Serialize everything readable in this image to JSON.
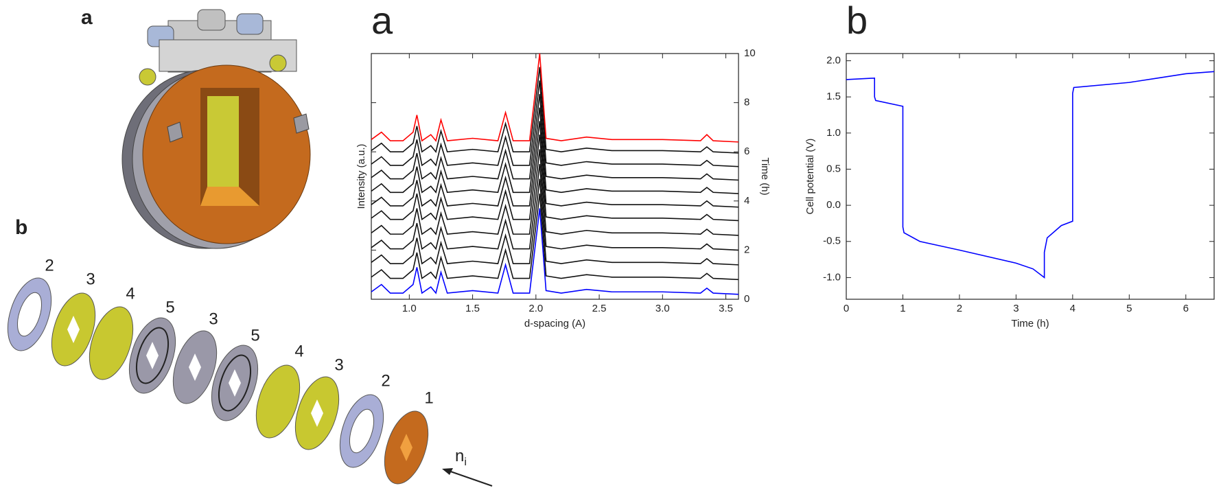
{
  "figure": {
    "cell_label": "a",
    "exploded_label": "b",
    "part_labels": [
      "2",
      "3",
      "4",
      "5",
      "3",
      "5",
      "4",
      "3",
      "2",
      "1"
    ],
    "arrow_label": {
      "base": "n",
      "subscript": "i"
    }
  },
  "chart_data": [
    {
      "type": "line",
      "panel_label": "a",
      "xlabel": "d-spacing (A)",
      "ylabel": "Intensity (a.u.)",
      "y2label": "Time (h)",
      "xlim": [
        0.7,
        3.6
      ],
      "xticks": [
        {
          "value": 1.0,
          "label": "1.0"
        },
        1.5,
        {
          "value": 2.0,
          "label": "2.0"
        },
        2.5,
        {
          "value": 3.0,
          "label": "3.0"
        },
        3.5
      ],
      "y2lim": [
        0,
        10
      ],
      "y2ticks": [
        0,
        2,
        4,
        6,
        8,
        10
      ],
      "x": [
        0.7,
        0.78,
        0.85,
        0.95,
        1.03,
        1.06,
        1.1,
        1.17,
        1.21,
        1.25,
        1.3,
        1.5,
        1.7,
        1.76,
        1.82,
        1.95,
        2.03,
        2.08,
        2.2,
        2.4,
        2.6,
        3.0,
        3.3,
        3.35,
        3.4,
        3.6
      ],
      "series": [
        {
          "axis": "y2",
          "color": "#0000ff",
          "values": [
            0.3,
            0.6,
            0.25,
            0.25,
            0.6,
            1.3,
            0.25,
            0.5,
            0.25,
            1.1,
            0.25,
            0.35,
            0.25,
            1.4,
            0.25,
            0.25,
            3.7,
            0.35,
            0.25,
            0.4,
            0.3,
            0.3,
            0.25,
            0.45,
            0.25,
            0.2
          ]
        },
        {
          "axis": "y2",
          "color": "#111111",
          "values": [
            0.9,
            1.2,
            0.85,
            0.85,
            1.2,
            1.9,
            0.85,
            1.1,
            0.85,
            1.7,
            0.85,
            0.95,
            0.85,
            2.0,
            0.85,
            0.85,
            4.3,
            0.95,
            0.85,
            1.0,
            0.9,
            0.9,
            0.85,
            1.05,
            0.85,
            0.8
          ]
        },
        {
          "axis": "y2",
          "color": "#111111",
          "values": [
            1.5,
            1.8,
            1.45,
            1.45,
            1.8,
            2.5,
            1.45,
            1.7,
            1.45,
            2.3,
            1.45,
            1.55,
            1.45,
            2.6,
            1.45,
            1.45,
            4.9,
            1.55,
            1.45,
            1.6,
            1.5,
            1.5,
            1.45,
            1.65,
            1.45,
            1.4
          ]
        },
        {
          "axis": "y2",
          "color": "#111111",
          "values": [
            2.1,
            2.4,
            2.05,
            2.05,
            2.4,
            3.1,
            2.05,
            2.3,
            2.05,
            2.9,
            2.05,
            2.15,
            2.05,
            3.2,
            2.05,
            2.05,
            5.5,
            2.15,
            2.05,
            2.2,
            2.1,
            2.1,
            2.05,
            2.25,
            2.05,
            2.0
          ]
        },
        {
          "axis": "y2",
          "color": "#111111",
          "values": [
            2.7,
            3.0,
            2.65,
            2.65,
            3.0,
            3.7,
            2.65,
            2.9,
            2.65,
            3.5,
            2.65,
            2.75,
            2.65,
            3.8,
            2.65,
            2.65,
            6.1,
            2.75,
            2.65,
            2.8,
            2.7,
            2.7,
            2.65,
            2.85,
            2.65,
            2.6
          ]
        },
        {
          "axis": "y2",
          "color": "#111111",
          "values": [
            3.3,
            3.6,
            3.25,
            3.25,
            3.6,
            4.3,
            3.25,
            3.5,
            3.25,
            4.1,
            3.25,
            3.35,
            3.25,
            4.4,
            3.25,
            3.25,
            6.7,
            3.35,
            3.25,
            3.4,
            3.3,
            3.3,
            3.25,
            3.45,
            3.25,
            3.2
          ]
        },
        {
          "axis": "y2",
          "color": "#111111",
          "values": [
            3.85,
            4.15,
            3.8,
            3.8,
            4.15,
            4.85,
            3.8,
            4.05,
            3.8,
            4.65,
            3.8,
            3.9,
            3.8,
            4.95,
            3.8,
            3.8,
            7.25,
            3.9,
            3.8,
            3.95,
            3.85,
            3.85,
            3.8,
            4.0,
            3.8,
            3.75
          ]
        },
        {
          "axis": "y2",
          "color": "#111111",
          "values": [
            4.4,
            4.7,
            4.35,
            4.35,
            4.7,
            5.4,
            4.35,
            4.6,
            4.35,
            5.2,
            4.35,
            4.45,
            4.35,
            5.5,
            4.35,
            4.35,
            7.8,
            4.45,
            4.35,
            4.5,
            4.4,
            4.4,
            4.35,
            4.55,
            4.35,
            4.3
          ]
        },
        {
          "axis": "y2",
          "color": "#111111",
          "values": [
            4.95,
            5.25,
            4.9,
            4.9,
            5.25,
            5.95,
            4.9,
            5.15,
            4.9,
            5.75,
            4.9,
            5.0,
            4.9,
            6.05,
            4.9,
            4.9,
            8.35,
            5.0,
            4.9,
            5.05,
            4.95,
            4.95,
            4.9,
            5.1,
            4.9,
            4.85
          ]
        },
        {
          "axis": "y2",
          "color": "#111111",
          "values": [
            5.5,
            5.8,
            5.45,
            5.45,
            5.8,
            6.5,
            5.45,
            5.7,
            5.45,
            6.3,
            5.45,
            5.55,
            5.45,
            6.6,
            5.45,
            5.45,
            8.9,
            5.55,
            5.45,
            5.6,
            5.5,
            5.5,
            5.45,
            5.65,
            5.45,
            5.4
          ]
        },
        {
          "axis": "y2",
          "color": "#111111",
          "values": [
            6.05,
            6.35,
            6.0,
            6.0,
            6.35,
            7.05,
            6.0,
            6.25,
            6.0,
            6.85,
            6.0,
            6.1,
            6.0,
            7.15,
            6.0,
            6.0,
            9.45,
            6.1,
            6.0,
            6.15,
            6.05,
            6.05,
            6.0,
            6.2,
            6.0,
            5.95
          ]
        },
        {
          "axis": "y2",
          "color": "#ff0000",
          "values": [
            6.5,
            6.8,
            6.45,
            6.45,
            6.8,
            7.5,
            6.45,
            6.7,
            6.45,
            7.3,
            6.45,
            6.55,
            6.45,
            7.6,
            6.45,
            6.45,
            10.0,
            6.55,
            6.45,
            6.6,
            6.5,
            6.5,
            6.45,
            6.7,
            6.45,
            6.4
          ]
        }
      ]
    },
    {
      "type": "line",
      "panel_label": "b",
      "xlabel": "Time (h)",
      "ylabel": "Cell potential (V)",
      "xlim": [
        0,
        6.5
      ],
      "xticks": [
        0,
        1,
        2,
        3,
        4,
        5,
        6
      ],
      "ylim": [
        -1.3,
        2.1
      ],
      "yticks": [
        {
          "value": -1.0,
          "label": "-1.0"
        },
        -0.5,
        {
          "value": 0.0,
          "label": "0.0"
        },
        0.5,
        {
          "value": 1.0,
          "label": "1.0"
        },
        1.5,
        {
          "value": 2.0,
          "label": "2.0"
        }
      ],
      "x": [
        0,
        0.5,
        0.5,
        0.52,
        1.0,
        1.0,
        1.02,
        1.3,
        2,
        3,
        3.3,
        3.5,
        3.5,
        3.55,
        3.8,
        4.0,
        4.0,
        4.02,
        5,
        5.5,
        6,
        6.5
      ],
      "series": [
        {
          "color": "#0000ff",
          "values": [
            1.74,
            1.76,
            1.5,
            1.45,
            1.37,
            -0.3,
            -0.38,
            -0.5,
            -0.62,
            -0.8,
            -0.88,
            -1.0,
            -0.65,
            -0.45,
            -0.28,
            -0.22,
            1.55,
            1.63,
            1.7,
            1.76,
            1.82,
            1.85
          ]
        }
      ]
    }
  ]
}
